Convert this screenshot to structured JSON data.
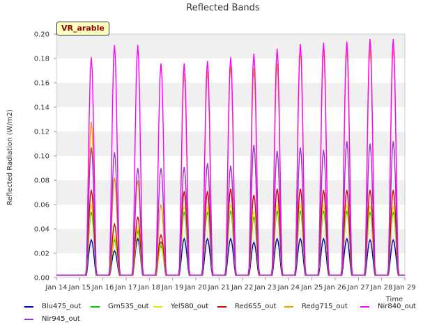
{
  "chart_data": {
    "type": "line",
    "title": "Reflected Bands",
    "ylabel": "Reflected Radiation (W/m2)",
    "xlabel": "Time",
    "ylim": [
      0,
      0.2
    ],
    "xlim": [
      0,
      15
    ],
    "yticks": [
      0.0,
      0.02,
      0.04,
      0.06,
      0.08,
      0.1,
      0.12,
      0.14,
      0.16,
      0.18,
      0.2
    ],
    "ytick_labels": [
      "0.00",
      "0.02",
      "0.04",
      "0.06",
      "0.08",
      "0.10",
      "0.12",
      "0.14",
      "0.16",
      "0.18",
      "0.20"
    ],
    "xtick_labels": [
      "Jan 14",
      "Jan 15",
      "Jan 16",
      "Jan 17",
      "Jan 18",
      "Jan 19",
      "Jan 20",
      "Jan 21",
      "Jan 22",
      "Jan 23",
      "Jan 24",
      "Jan 25",
      "Jan 26",
      "Jan 27",
      "Jan 28",
      "Jan 29"
    ],
    "grid": "horizontal bands",
    "legend_position": "bottom",
    "annotation": "VR_arable",
    "days": [
      "Jan 14",
      "Jan 15",
      "Jan 16",
      "Jan 17",
      "Jan 18",
      "Jan 19",
      "Jan 20",
      "Jan 21",
      "Jan 22",
      "Jan 23",
      "Jan 24",
      "Jan 25",
      "Jan 26",
      "Jan 27",
      "Jan 28"
    ],
    "series": [
      {
        "name": "Blu475_out",
        "color": "#0000cc",
        "daily_peak": [
          0.0,
          0.031,
          0.022,
          0.032,
          0.029,
          0.032,
          0.032,
          0.032,
          0.029,
          0.032,
          0.032,
          0.032,
          0.032,
          0.031,
          0.031
        ]
      },
      {
        "name": "Grn535_out",
        "color": "#00cc00",
        "daily_peak": [
          0.0,
          0.054,
          0.031,
          0.038,
          0.026,
          0.054,
          0.054,
          0.055,
          0.05,
          0.055,
          0.055,
          0.055,
          0.055,
          0.054,
          0.054
        ]
      },
      {
        "name": "Yel580_out",
        "color": "#e6e600",
        "daily_peak": [
          0.0,
          0.06,
          0.034,
          0.041,
          0.028,
          0.059,
          0.059,
          0.06,
          0.055,
          0.06,
          0.06,
          0.06,
          0.06,
          0.059,
          0.059
        ]
      },
      {
        "name": "Red655_out",
        "color": "#dd0000",
        "daily_peak": [
          0.0,
          0.072,
          0.044,
          0.05,
          0.035,
          0.071,
          0.071,
          0.073,
          0.068,
          0.073,
          0.073,
          0.072,
          0.072,
          0.072,
          0.072
        ]
      },
      {
        "name": "Redg715_out",
        "color": "#ff9900",
        "daily_peak": [
          0.0,
          0.128,
          0.082,
          0.08,
          0.06,
          0.168,
          0.17,
          0.175,
          0.172,
          0.176,
          0.188,
          0.188,
          0.188,
          0.188,
          0.19
        ]
      },
      {
        "name": "Nir840_out",
        "color": "#ff00ff",
        "daily_peak": [
          0.0,
          0.181,
          0.191,
          0.191,
          0.176,
          0.176,
          0.178,
          0.181,
          0.184,
          0.188,
          0.192,
          0.193,
          0.194,
          0.196,
          0.196
        ]
      },
      {
        "name": "Nir945_out",
        "color": "#9933cc",
        "daily_peak": [
          0.0,
          0.107,
          0.103,
          0.09,
          0.09,
          0.091,
          0.094,
          0.092,
          0.109,
          0.104,
          0.107,
          0.105,
          0.112,
          0.11,
          0.112
        ]
      }
    ]
  }
}
